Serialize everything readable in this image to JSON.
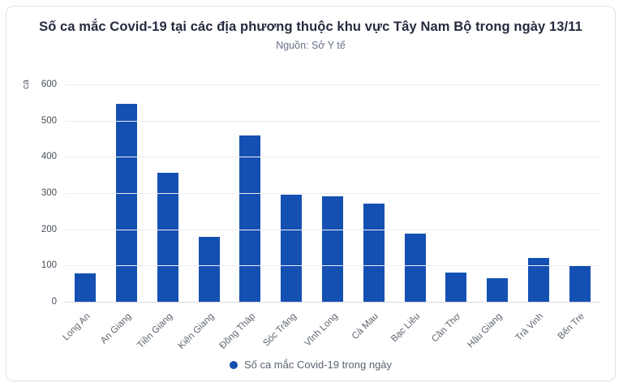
{
  "card": {
    "title": "Số ca mắc Covid-19 tại các địa phương thuộc khu vực Tây Nam Bộ trong ngày 13/11",
    "subtitle": "Nguồn: Sở Y tế"
  },
  "chart_data": {
    "type": "bar",
    "title": "Số ca mắc Covid-19 tại các địa phương thuộc khu vực Tây Nam Bộ trong ngày 13/11",
    "subtitle": "Nguồn: Sở Y tế",
    "ylabel": "ca",
    "xlabel": "",
    "categories": [
      "Long An",
      "An Giang",
      "Tiền Giang",
      "Kiên Giang",
      "Đồng Tháp",
      "Sóc Trăng",
      "Vĩnh Long",
      "Cà Mau",
      "Bạc Liêu",
      "Cần Thơ",
      "Hậu Giang",
      "Trà Vinh",
      "Bến Tre"
    ],
    "values": [
      78,
      547,
      355,
      180,
      458,
      295,
      290,
      270,
      187,
      80,
      65,
      120,
      98
    ],
    "ylim": [
      0,
      600
    ],
    "yticks": [
      0,
      100,
      200,
      300,
      400,
      500,
      600
    ],
    "grid": true,
    "legend": {
      "label": "Số ca mắc Covid-19 trong ngày",
      "position": "bottom"
    },
    "colors": {
      "bar": "#1450b2",
      "title": "#252b3f",
      "subtitle": "#667085",
      "gridline": "#ededf1",
      "axis_line": "#d7d9de",
      "tick_label": "#474e59",
      "category_label": "#5d646e",
      "legend_text": "#5b6472",
      "card_border": "#e2e3e8"
    }
  }
}
